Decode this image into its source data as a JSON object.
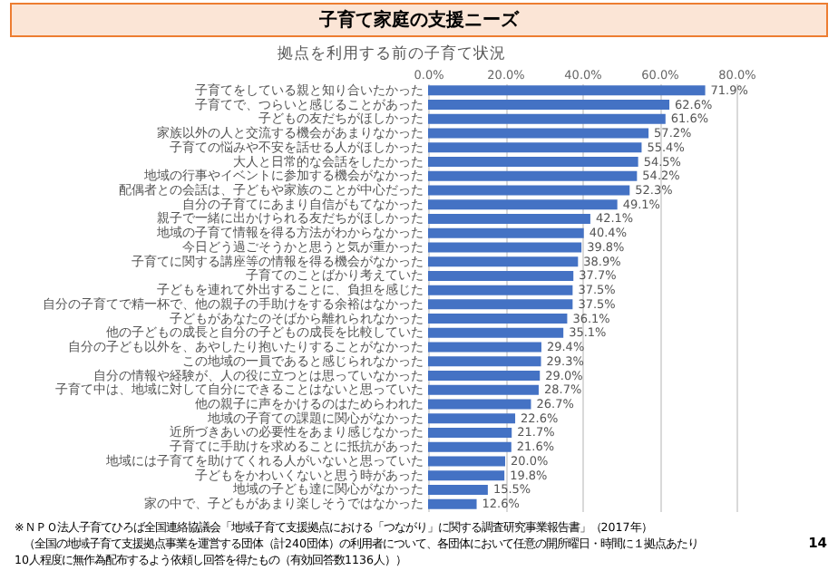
{
  "chart_data": {
    "type": "bar",
    "orientation": "horizontal",
    "title": "子育て家庭の支援ニーズ",
    "subtitle": "拠点を利用する前の子育て状況",
    "categories": [
      "子育てをしている親と知り合いたかった",
      "子育てで、つらいと感じることがあった",
      "子どもの友だちがほしかった",
      "家族以外の人と交流する機会があまりなかった",
      "子育ての悩みや不安を話せる人がほしかった",
      "大人と日常的な会話をしたかった",
      "地域の行事やイベントに参加する機会がなかった",
      "配偶者との会話は、子どもや家族のことが中心だった",
      "自分の子育てにあまり自信がもてなかった",
      "親子で一緒に出かけられる友だちがほしかった",
      "地域の子育て情報を得る方法がわからなかった",
      "今日どう過ごそうかと思うと気が重かった",
      "子育てに関する講座等の情報を得る機会がなかった",
      "子育てのことばかり考えていた",
      "子どもを連れて外出することに、負担を感じた",
      "自分の子育てで精一杯で、他の親子の手助けをする余裕はなかった",
      "子どもがあなたのそばから離れられなかった",
      "他の子どもの成長と自分の子どもの成長を比較していた",
      "自分の子ども以外を、あやしたり抱いたりすることがなかった",
      "この地域の一員であると感じられなかった",
      "自分の情報や経験が、人の役に立つとは思っていなかった",
      "子育て中は、地域に対して自分にできることはないと思っていた",
      "他の親子に声をかけるのはためらわれた",
      "地域の子育ての課題に関心がなかった",
      "近所づきあいの必要性をあまり感じなかった",
      "子育てに手助けを求めることに抵抗があった",
      "地域には子育てを助けてくれる人がいないと思っていた",
      "子どもをかわいくないと思う時があった",
      "地域の子ども達に関心がなかった",
      "家の中で、子どもがあまり楽しそうではなかった"
    ],
    "values": [
      71.9,
      62.6,
      61.6,
      57.2,
      55.4,
      54.5,
      54.2,
      52.3,
      49.1,
      42.1,
      40.4,
      39.8,
      38.9,
      37.7,
      37.5,
      37.5,
      36.1,
      35.1,
      29.4,
      29.3,
      29.0,
      28.7,
      26.7,
      22.6,
      21.7,
      21.6,
      20.0,
      19.8,
      15.5,
      12.6
    ],
    "value_labels": [
      "71.9%",
      "62.6%",
      "61.6%",
      "57.2%",
      "55.4%",
      "54.5%",
      "54.2%",
      "52.3%",
      "49.1%",
      "42.1%",
      "40.4%",
      "39.8%",
      "38.9%",
      "37.7%",
      "37.5%",
      "37.5%",
      "36.1%",
      "35.1%",
      "29.4%",
      "29.3%",
      "29.0%",
      "28.7%",
      "26.7%",
      "22.6%",
      "21.7%",
      "21.6%",
      "20.0%",
      "19.8%",
      "15.5%",
      "12.6%"
    ],
    "color": "#4472c4",
    "xlim": [
      0,
      80
    ],
    "xticks": [
      {
        "value": 0,
        "label": "0.0%"
      },
      {
        "value": 20,
        "label": "20.0%"
      },
      {
        "value": 40,
        "label": "40.0%"
      },
      {
        "value": 60,
        "label": "60.0%"
      },
      {
        "value": 80,
        "label": "80.0%"
      }
    ],
    "grid": "x",
    "annotations": [
      "※ＮＰＯ法人子育てひろば全国連絡協議会「地域子育て支援拠点における「つながり」に関する調査研究事業報告書」（2017年）",
      "（全国の地域子育て支援拠点事業を運営する団体（計240団体）の利用者について、各団体において任意の開所曜日・時間に１拠点あたり",
      "10人程度に無作為配布するよう依頼し回答を得たもの（有効回答数1136人））",
      "14"
    ]
  }
}
